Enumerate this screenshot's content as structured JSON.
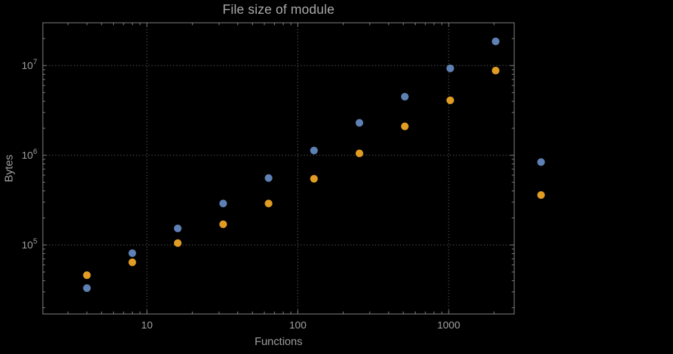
{
  "colors": {
    "background": "#000000",
    "frame": "#8a8a8a",
    "grid": "#5c5c5c",
    "text": "#9e9e9e",
    "title": "#a9a9a9",
    "series_blue": "#5e81b5",
    "series_orange": "#e19c24"
  },
  "chart_data": {
    "type": "scatter",
    "title": "File size of module",
    "xlabel": "Functions",
    "ylabel": "Bytes",
    "x_scale": "log",
    "y_scale": "log",
    "grid": true,
    "legend": false,
    "x_range": [
      2.04,
      2720
    ],
    "y_range": [
      17000,
      30000000
    ],
    "x_ticks": [
      10,
      100,
      1000
    ],
    "x_tick_labels": [
      "10",
      "100",
      "1000"
    ],
    "y_ticks": [
      100000,
      1000000,
      10000000
    ],
    "y_tick_labels": [
      "10^5",
      "10^6",
      "10^7"
    ],
    "x": [
      4,
      8,
      16,
      32,
      64,
      128,
      256,
      512,
      1024,
      2048,
      4096
    ],
    "series": [
      {
        "name": "series-blue",
        "color": "#5e81b5",
        "values": [
          33000,
          81000,
          153000,
          290000,
          557000,
          1130000,
          2300000,
          4500000,
          9300000,
          18600000,
          840000
        ]
      },
      {
        "name": "series-orange",
        "color": "#e19c24",
        "values": [
          46000,
          64000,
          105000,
          170000,
          290000,
          547000,
          1050000,
          2100000,
          4100000,
          8800000,
          360000
        ]
      }
    ]
  }
}
